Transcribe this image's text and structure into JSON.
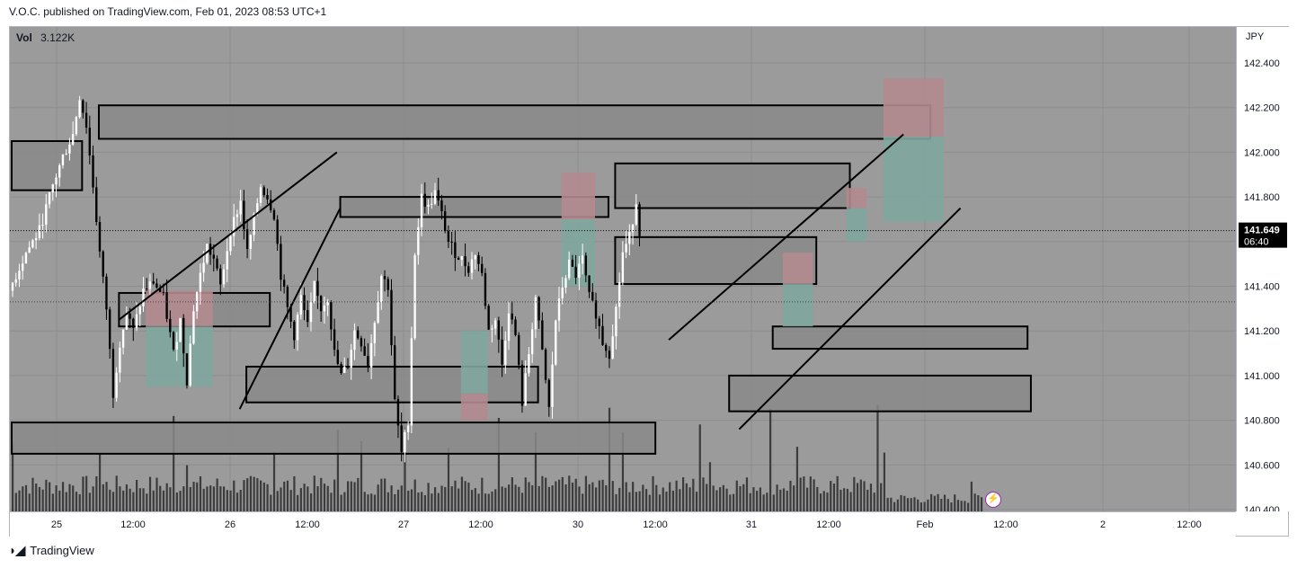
{
  "header": {
    "published": "V.O.C. published on TradingView.com, Feb 01, 2023 08:53 UTC+1"
  },
  "legend": {
    "label": "Vol",
    "value": "3.122K"
  },
  "footer": {
    "brand": "TradingView",
    "logo_icon": "tradingview-logo-icon"
  },
  "price_axis": {
    "currency": "JPY",
    "last_price": "141.649",
    "countdown": "06:40"
  },
  "colors": {
    "background": "#9b9b9b",
    "candle_up": "#ffffff",
    "candle_down": "#000000",
    "zone_fill": "#8a8a8a",
    "supply": "#b38a8e",
    "demand": "#7fa69f",
    "last_price_bg": "#000000",
    "bolt": "#9c27b0"
  },
  "chart_data": {
    "type": "candlestick",
    "symbol_currency": "JPY",
    "timeframe_ticks": [
      "25",
      "12:00",
      "26",
      "12:00",
      "27",
      "12:00",
      "30",
      "12:00",
      "31",
      "12:00",
      "Feb",
      "12:00",
      "2",
      "12:00"
    ],
    "price_ticks": [
      "142.400",
      "142.200",
      "142.000",
      "141.800",
      "141.600",
      "141.400",
      "141.200",
      "141.000",
      "140.800",
      "140.600",
      "140.400"
    ],
    "ylim": [
      140.4,
      142.6
    ],
    "last_price": 141.649,
    "close_path": [
      [
        0,
        141.38
      ],
      [
        5,
        141.55
      ],
      [
        9,
        141.65
      ],
      [
        13,
        141.85
      ],
      [
        16,
        141.98
      ],
      [
        19,
        142.08
      ],
      [
        21,
        142.25
      ],
      [
        23,
        142.12
      ],
      [
        25,
        141.85
      ],
      [
        27,
        141.55
      ],
      [
        29,
        141.3
      ],
      [
        31,
        140.92
      ],
      [
        33,
        141.15
      ],
      [
        35,
        141.28
      ],
      [
        37,
        141.2
      ],
      [
        40,
        141.38
      ],
      [
        43,
        141.42
      ],
      [
        46,
        141.35
      ],
      [
        49,
        141.1
      ],
      [
        51,
        141.25
      ],
      [
        53,
        140.98
      ],
      [
        55,
        141.3
      ],
      [
        57,
        141.45
      ],
      [
        59,
        141.58
      ],
      [
        61,
        141.52
      ],
      [
        63,
        141.4
      ],
      [
        66,
        141.65
      ],
      [
        69,
        141.78
      ],
      [
        71,
        141.55
      ],
      [
        73,
        141.7
      ],
      [
        75,
        141.85
      ],
      [
        77,
        141.8
      ],
      [
        79,
        141.72
      ],
      [
        81,
        141.45
      ],
      [
        83,
        141.3
      ],
      [
        85,
        141.18
      ],
      [
        87,
        141.35
      ],
      [
        89,
        141.22
      ],
      [
        91,
        141.4
      ],
      [
        93,
        141.3
      ],
      [
        95,
        141.35
      ],
      [
        97,
        141.1
      ],
      [
        99,
        141.0
      ],
      [
        101,
        141.05
      ],
      [
        103,
        141.2
      ],
      [
        105,
        141.15
      ],
      [
        107,
        141.05
      ],
      [
        109,
        141.25
      ],
      [
        111,
        141.45
      ],
      [
        113,
        141.4
      ],
      [
        115,
        140.88
      ],
      [
        117,
        140.65
      ],
      [
        119,
        140.8
      ],
      [
        121,
        141.55
      ],
      [
        123,
        141.8
      ],
      [
        125,
        141.75
      ],
      [
        127,
        141.82
      ],
      [
        129,
        141.72
      ],
      [
        131,
        141.6
      ],
      [
        133,
        141.55
      ],
      [
        135,
        141.52
      ],
      [
        137,
        141.48
      ],
      [
        139,
        141.55
      ],
      [
        141,
        141.45
      ],
      [
        143,
        141.2
      ],
      [
        145,
        141.25
      ],
      [
        147,
        141.05
      ],
      [
        149,
        141.3
      ],
      [
        151,
        141.18
      ],
      [
        153,
        140.88
      ],
      [
        155,
        141.1
      ],
      [
        157,
        141.35
      ],
      [
        159,
        141.1
      ],
      [
        161,
        140.85
      ],
      [
        163,
        141.25
      ],
      [
        165,
        141.4
      ],
      [
        167,
        141.5
      ],
      [
        169,
        141.45
      ],
      [
        171,
        141.52
      ],
      [
        173,
        141.35
      ],
      [
        175,
        141.28
      ],
      [
        177,
        141.15
      ],
      [
        179,
        141.1
      ],
      [
        181,
        141.3
      ],
      [
        183,
        141.55
      ],
      [
        185,
        141.62
      ],
      [
        187,
        141.78
      ],
      [
        188,
        141.649
      ]
    ],
    "zones": [
      {
        "kind": "box",
        "from": 0,
        "to": 21,
        "low": 141.83,
        "high": 142.05
      },
      {
        "kind": "box",
        "from": 26,
        "to": 274,
        "low": 142.06,
        "high": 142.21
      },
      {
        "kind": "box",
        "from": 32,
        "to": 77,
        "low": 141.22,
        "high": 141.37
      },
      {
        "kind": "box",
        "from": 70,
        "to": 157,
        "low": 140.88,
        "high": 141.04
      },
      {
        "kind": "box",
        "from": 0,
        "to": 192,
        "low": 140.65,
        "high": 140.79
      },
      {
        "kind": "box",
        "from": 98,
        "to": 178,
        "low": 141.71,
        "high": 141.8
      },
      {
        "kind": "box",
        "from": 180,
        "to": 250,
        "low": 141.75,
        "high": 141.95
      },
      {
        "kind": "box",
        "from": 180,
        "to": 240,
        "low": 141.41,
        "high": 141.62
      },
      {
        "kind": "box",
        "from": 227,
        "to": 303,
        "low": 141.12,
        "high": 141.22
      },
      {
        "kind": "box",
        "from": 214,
        "to": 304,
        "low": 140.84,
        "high": 141.0
      }
    ],
    "positions": [
      {
        "side": "short",
        "from": 40,
        "to": 60,
        "entry": 141.22,
        "stop": 141.38,
        "target": 140.95
      },
      {
        "side": "long",
        "from": 134,
        "to": 142,
        "entry": 140.92,
        "stop": 140.8,
        "target": 141.2
      },
      {
        "side": "short",
        "from": 164,
        "to": 174,
        "entry": 141.7,
        "stop": 141.91,
        "target": 141.4
      },
      {
        "side": "short",
        "from": 230,
        "to": 239,
        "entry": 141.41,
        "stop": 141.55,
        "target": 141.22
      },
      {
        "side": "short",
        "from": 249,
        "to": 255,
        "entry": 141.75,
        "stop": 141.84,
        "target": 141.6
      },
      {
        "side": "short",
        "from": 260,
        "to": 278,
        "entry": 142.07,
        "stop": 142.33,
        "target": 141.69
      }
    ],
    "trendlines": [
      [
        [
          32,
          141.25
        ],
        [
          97,
          142.0
        ]
      ],
      [
        [
          68,
          140.85
        ],
        [
          98,
          141.75
        ]
      ],
      [
        [
          196,
          141.16
        ],
        [
          266,
          142.08
        ]
      ],
      [
        [
          217,
          140.76
        ],
        [
          283,
          141.75
        ]
      ]
    ],
    "volume_note": "volume histogram at bottom"
  }
}
